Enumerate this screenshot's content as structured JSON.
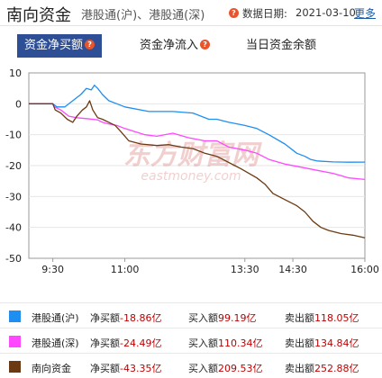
{
  "header": {
    "title": "南向资金",
    "subtitle": "港股通(沪)、港股通(深)",
    "help_glyph": "?",
    "date_label": "数据日期:",
    "date_value": "2021-03-10",
    "more_link": "更多"
  },
  "tabs": [
    {
      "label": "资金净买额",
      "active": true
    },
    {
      "label": "资金净流入",
      "active": false
    },
    {
      "label": "当日资金余额",
      "active": false
    }
  ],
  "watermark": {
    "cn": "东方财富网",
    "en": "eastmoney.com"
  },
  "chart_data": {
    "type": "line",
    "ylim": [
      -50,
      10
    ],
    "y_ticks": [
      "10",
      "0",
      "-10",
      "-20",
      "-30",
      "-40",
      "-50"
    ],
    "x_ticks": [
      "9:30",
      "11:00",
      "13:30",
      "14:30",
      "16:00"
    ],
    "x_tick_minutes": [
      30,
      120,
      270,
      330,
      420
    ],
    "xlim_minutes": [
      0,
      420
    ],
    "series": [
      {
        "name": "港股通(沪)",
        "color": "#1f8ef1",
        "points": [
          [
            0,
            0
          ],
          [
            30,
            0
          ],
          [
            35,
            -1
          ],
          [
            45,
            -1
          ],
          [
            55,
            1
          ],
          [
            65,
            3
          ],
          [
            72,
            5
          ],
          [
            78,
            4.5
          ],
          [
            82,
            6
          ],
          [
            86,
            5
          ],
          [
            92,
            3
          ],
          [
            100,
            1
          ],
          [
            110,
            0
          ],
          [
            120,
            -1
          ],
          [
            150,
            -2.5
          ],
          [
            180,
            -2.5
          ],
          [
            205,
            -3
          ],
          [
            225,
            -5
          ],
          [
            235,
            -5
          ],
          [
            250,
            -6
          ],
          [
            270,
            -7
          ],
          [
            285,
            -8
          ],
          [
            300,
            -10
          ],
          [
            320,
            -13
          ],
          [
            335,
            -16
          ],
          [
            345,
            -17
          ],
          [
            352,
            -18
          ],
          [
            360,
            -18.5
          ],
          [
            380,
            -18.8
          ],
          [
            400,
            -18.9
          ],
          [
            420,
            -18.86
          ]
        ]
      },
      {
        "name": "港股通(深)",
        "color": "#ff48ff",
        "points": [
          [
            0,
            0
          ],
          [
            30,
            0
          ],
          [
            32,
            -1
          ],
          [
            40,
            -2
          ],
          [
            50,
            -4
          ],
          [
            60,
            -4.5
          ],
          [
            72,
            -4.8
          ],
          [
            80,
            -5
          ],
          [
            86,
            -5.2
          ],
          [
            92,
            -6
          ],
          [
            100,
            -6.5
          ],
          [
            110,
            -7
          ],
          [
            120,
            -8
          ],
          [
            145,
            -10
          ],
          [
            160,
            -10.5
          ],
          [
            180,
            -9.5
          ],
          [
            200,
            -11
          ],
          [
            220,
            -12
          ],
          [
            235,
            -12
          ],
          [
            250,
            -14
          ],
          [
            270,
            -15
          ],
          [
            285,
            -16
          ],
          [
            300,
            -18
          ],
          [
            320,
            -19.5
          ],
          [
            340,
            -20.5
          ],
          [
            360,
            -21.5
          ],
          [
            380,
            -22.5
          ],
          [
            400,
            -24
          ],
          [
            420,
            -24.49
          ]
        ]
      },
      {
        "name": "南向资金",
        "color": "#6b3a12",
        "points": [
          [
            0,
            0
          ],
          [
            30,
            0
          ],
          [
            33,
            -2
          ],
          [
            40,
            -3
          ],
          [
            48,
            -5
          ],
          [
            55,
            -6
          ],
          [
            60,
            -4
          ],
          [
            67,
            -2
          ],
          [
            72,
            -1
          ],
          [
            76,
            1
          ],
          [
            80,
            -2
          ],
          [
            86,
            -4.5
          ],
          [
            92,
            -5
          ],
          [
            100,
            -6
          ],
          [
            108,
            -7
          ],
          [
            115,
            -9
          ],
          [
            125,
            -12
          ],
          [
            140,
            -13
          ],
          [
            160,
            -13.5
          ],
          [
            175,
            -13.2
          ],
          [
            190,
            -14
          ],
          [
            205,
            -14.5
          ],
          [
            220,
            -16
          ],
          [
            235,
            -17
          ],
          [
            250,
            -19
          ],
          [
            265,
            -21
          ],
          [
            275,
            -22.5
          ],
          [
            285,
            -24
          ],
          [
            295,
            -26
          ],
          [
            305,
            -29
          ],
          [
            320,
            -31
          ],
          [
            335,
            -33
          ],
          [
            345,
            -35
          ],
          [
            355,
            -38
          ],
          [
            365,
            -40
          ],
          [
            375,
            -41
          ],
          [
            390,
            -42
          ],
          [
            405,
            -42.5
          ],
          [
            420,
            -43.35
          ]
        ]
      }
    ]
  },
  "legend": [
    {
      "name": "港股通(沪)",
      "net_label": "净买额",
      "net_value": "-18.86亿",
      "buy_label": "买入额",
      "buy_value": "99.19亿",
      "sell_label": "卖出额",
      "sell_value": "118.05亿",
      "color": "#1f8ef1"
    },
    {
      "name": "港股通(深)",
      "net_label": "净买额",
      "net_value": "-24.49亿",
      "buy_label": "买入额",
      "buy_value": "110.34亿",
      "sell_label": "卖出额",
      "sell_value": "134.84亿",
      "color": "#ff48ff"
    },
    {
      "name": "南向资金",
      "net_label": "净买额",
      "net_value": "-43.35亿",
      "buy_label": "买入额",
      "buy_value": "209.53亿",
      "sell_label": "卖出额",
      "sell_value": "252.88亿",
      "color": "#6b3a12"
    }
  ]
}
